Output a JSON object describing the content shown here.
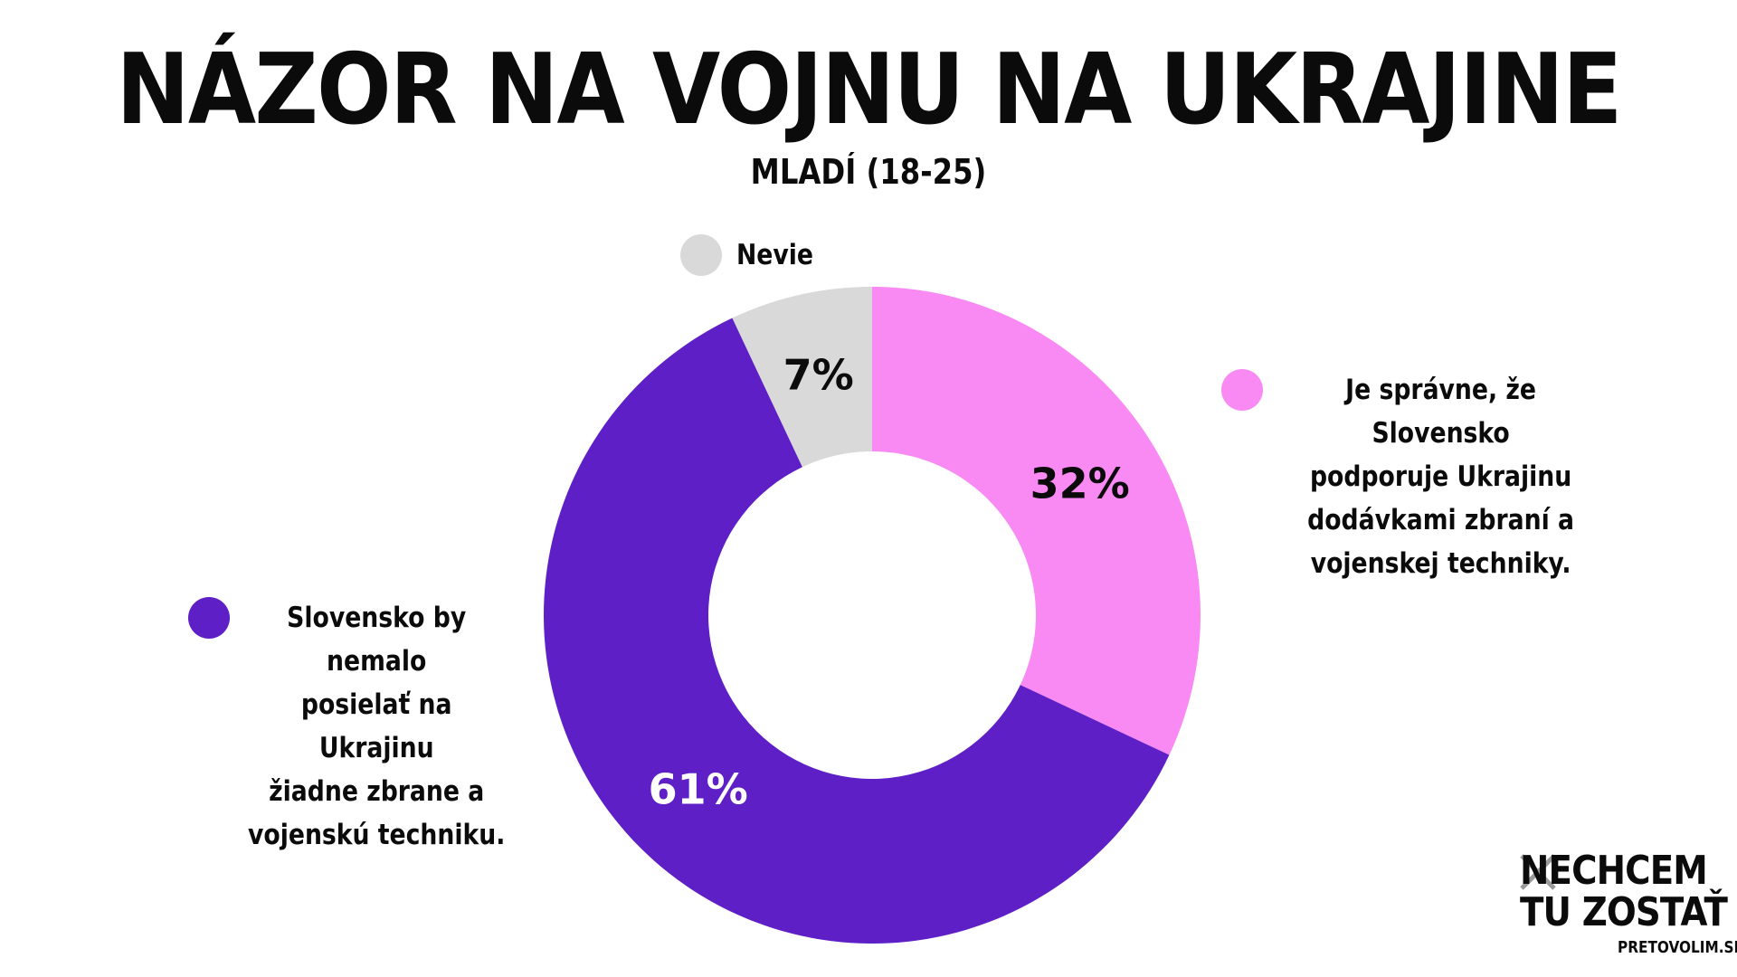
{
  "title": "NÁZOR NA VOJNU NA UKRAJINE",
  "subtitle": "MLADÍ (18-25)",
  "chart_data": {
    "type": "pie",
    "variant": "donut",
    "title": "NÁZOR NA VOJNU NA UKRAJINE",
    "subtitle": "MLADÍ (18-25)",
    "slices": [
      {
        "label": "Je správne, že Slovensko podporuje Ukrajinu dodávkami zbraní a vojenskej techniky.",
        "value": 32,
        "display": "32%",
        "color": "#f98af4",
        "label_color": "#0b0b0b"
      },
      {
        "label": "Slovensko by nemalo posielať na Ukrajinu žiadne zbrane a vojenskú techniku.",
        "value": 61,
        "display": "61%",
        "color": "#5e1fc7",
        "label_color": "#ffffff"
      },
      {
        "label": "Nevie",
        "value": 7,
        "display": "7%",
        "color": "#d9d9d9",
        "label_color": "#0b0b0b"
      }
    ],
    "start_angle_deg": 0,
    "direction": "clockwise",
    "legend_placement": "around"
  },
  "legend": {
    "pro": {
      "lines": [
        "Je správne, že Slovensko",
        "podporuje Ukrajinu",
        "dodávkami zbraní a",
        "vojenskej techniky."
      ],
      "color": "#f98af4"
    },
    "against": {
      "lines": [
        "Slovensko by nemalo",
        "posielať na Ukrajinu",
        "žiadne zbrane a",
        "vojenskú techniku."
      ],
      "color": "#5e1fc7"
    },
    "nevie": {
      "label": "Nevie",
      "color": "#d9d9d9"
    }
  },
  "logo": {
    "line1": "NECHCEM",
    "line2": "TU ZOSTAŤ",
    "site": "PRETOVOLIM.SK",
    "icon": "cross-mark-icon"
  }
}
